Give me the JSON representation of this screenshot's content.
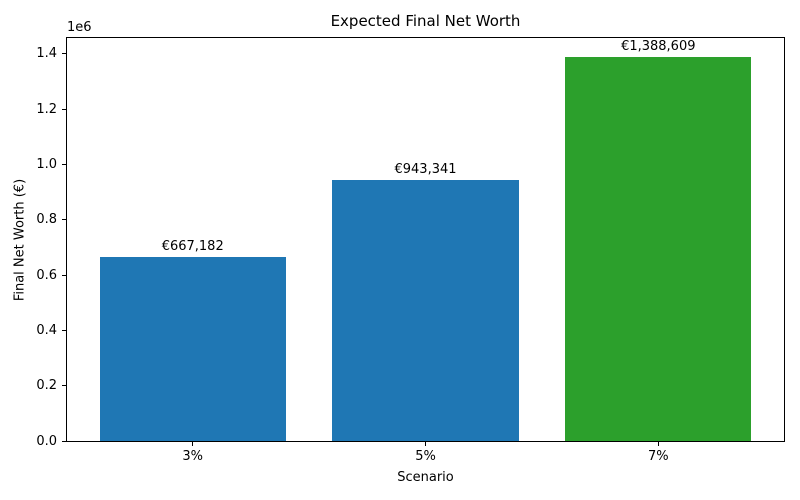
{
  "chart_data": {
    "type": "bar",
    "title": "Expected Final Net Worth",
    "xlabel": "Scenario",
    "ylabel": "Final Net Worth (€)",
    "categories": [
      "3%",
      "5%",
      "7%"
    ],
    "values": [
      667182,
      943341,
      1388609
    ],
    "value_labels": [
      "€667,182",
      "€943,341",
      "€1,388,609"
    ],
    "bar_colors": [
      "#1f77b4",
      "#1f77b4",
      "#2ca02c"
    ],
    "ylim": [
      0,
      1457839
    ],
    "yticks": [
      0,
      200000,
      400000,
      600000,
      800000,
      1000000,
      1200000,
      1400000
    ],
    "ytick_labels": [
      "0.0",
      "0.2",
      "0.4",
      "0.6",
      "0.8",
      "1.0",
      "1.2",
      "1.4"
    ],
    "y_offset_label": "1e6",
    "grid": false,
    "legend_position": null
  }
}
